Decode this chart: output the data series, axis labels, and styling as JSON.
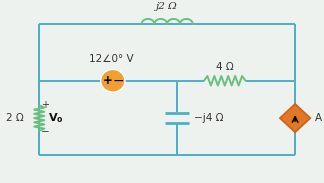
{
  "bg_color": "#eef2ee",
  "wire_color": "#4ab0c8",
  "component_color": "#4ab0c8",
  "inductor_color": "#6abf80",
  "resistor_color": "#6abf80",
  "capacitor_color": "#4ab0c8",
  "vsource_color": "#f0a030",
  "isource_color": "#e07828",
  "isource_edge": "#d06010",
  "label_j2": "j2 Ω",
  "label_4": "4 Ω",
  "label_neg_j4": "−j4 Ω",
  "label_2": "2 Ω",
  "label_vs": "12∠0° V",
  "label_A": "A",
  "label_Vo": "V",
  "label_Vo_sub": "o",
  "label_plus": "+",
  "label_minus": "−",
  "wire_lw": 1.4,
  "font_size": 7.5
}
